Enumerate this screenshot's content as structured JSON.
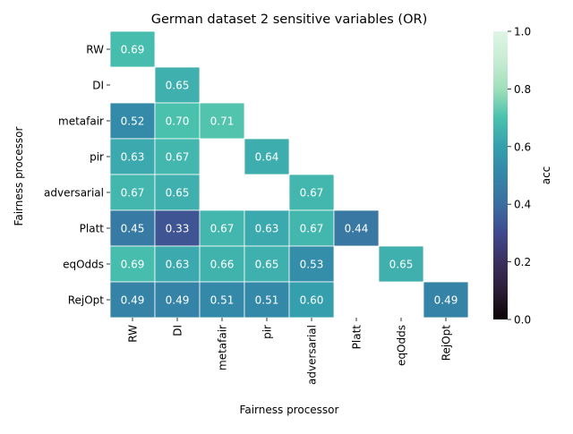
{
  "chart_data": {
    "type": "heatmap",
    "title": "German dataset 2 sensitive variables (OR)",
    "xlabel": "Fairness processor",
    "ylabel": "Fairness processor",
    "x_categories": [
      "RW",
      "DI",
      "metafair",
      "pir",
      "adversarial",
      "Platt",
      "eqOdds",
      "RejOpt"
    ],
    "y_categories": [
      "RW",
      "DI",
      "metafair",
      "pir",
      "adversarial",
      "Platt",
      "eqOdds",
      "RejOpt"
    ],
    "values": [
      [
        0.69,
        null,
        null,
        null,
        null,
        null,
        null,
        null
      ],
      [
        null,
        0.65,
        null,
        null,
        null,
        null,
        null,
        null
      ],
      [
        0.52,
        0.7,
        0.71,
        null,
        null,
        null,
        null,
        null
      ],
      [
        0.63,
        0.67,
        null,
        0.64,
        null,
        null,
        null,
        null
      ],
      [
        0.67,
        0.65,
        null,
        null,
        0.67,
        null,
        null,
        null
      ],
      [
        0.45,
        0.33,
        0.67,
        0.63,
        0.67,
        0.44,
        null,
        null
      ],
      [
        0.69,
        0.63,
        0.66,
        0.65,
        0.53,
        null,
        0.65,
        null
      ],
      [
        0.49,
        0.49,
        0.51,
        0.51,
        0.6,
        null,
        null,
        0.49
      ]
    ],
    "colorbar": {
      "label": "acc",
      "range": [
        0.0,
        1.0
      ],
      "ticks": [
        "0.0",
        "0.2",
        "0.4",
        "0.6",
        "0.8",
        "1.0"
      ],
      "colormap": "mako"
    },
    "value_format": "2 decimals"
  }
}
